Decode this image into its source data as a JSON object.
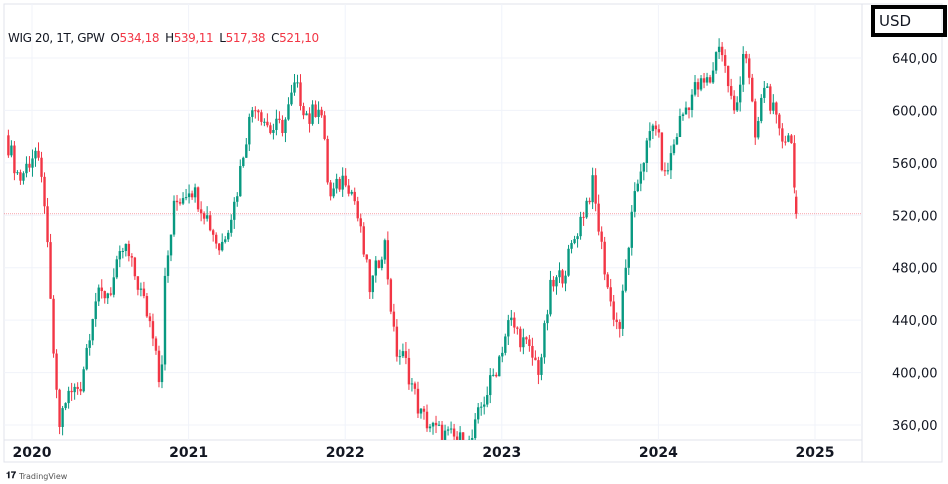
{
  "header": {
    "symbol": "WIG 20, 1T, GPW",
    "open_label": "O",
    "open": "534,18",
    "high_label": "H",
    "high": "539,11",
    "low_label": "L",
    "low": "517,38",
    "close_label": "C",
    "close": "521,10"
  },
  "currency": "USD",
  "branding": "TradingView",
  "colors": {
    "up": "#089981",
    "down": "#f23645",
    "grid": "#f0f3fa",
    "text": "#131722"
  },
  "chart_data": {
    "type": "candlestick",
    "title": "WIG 20, 1T, GPW",
    "interval": "1 week",
    "ylim": [
      340,
      665
    ],
    "y_ticks": [
      "640,00",
      "600,00",
      "560,00",
      "520,00",
      "480,00",
      "440,00",
      "400,00",
      "360,00"
    ],
    "y_tick_values": [
      640,
      600,
      560,
      520,
      480,
      440,
      400,
      360
    ],
    "x_ticks": [
      "2020",
      "2021",
      "2022",
      "2023",
      "2024",
      "2025"
    ],
    "x_tick_values": [
      2020,
      2021,
      2022,
      2023,
      2024,
      2025
    ],
    "last_price": 521.1,
    "last_candle": {
      "open": 534.18,
      "high": 539.11,
      "low": 517.38,
      "close": 521.1
    },
    "close_path": [
      [
        2019.83,
        581
      ],
      [
        2019.92,
        547
      ],
      [
        2020.02,
        570
      ],
      [
        2020.08,
        532
      ],
      [
        2020.12,
        448
      ],
      [
        2020.17,
        356
      ],
      [
        2020.21,
        379
      ],
      [
        2020.31,
        391
      ],
      [
        2020.4,
        455
      ],
      [
        2020.5,
        463
      ],
      [
        2020.59,
        497
      ],
      [
        2020.69,
        463
      ],
      [
        2020.79,
        425
      ],
      [
        2020.82,
        383
      ],
      [
        2020.85,
        471
      ],
      [
        2020.91,
        528
      ],
      [
        2021.01,
        543
      ],
      [
        2021.1,
        524
      ],
      [
        2021.2,
        494
      ],
      [
        2021.3,
        532
      ],
      [
        2021.36,
        577
      ],
      [
        2021.42,
        608
      ],
      [
        2021.52,
        585
      ],
      [
        2021.61,
        589
      ],
      [
        2021.68,
        619
      ],
      [
        2021.77,
        593
      ],
      [
        2021.84,
        608
      ],
      [
        2021.9,
        532
      ],
      [
        2022.0,
        551
      ],
      [
        2022.06,
        532
      ],
      [
        2022.16,
        463
      ],
      [
        2022.25,
        501
      ],
      [
        2022.32,
        417
      ],
      [
        2022.38,
        410
      ],
      [
        2022.48,
        368
      ],
      [
        2022.57,
        356
      ],
      [
        2022.64,
        352
      ],
      [
        2022.8,
        345
      ],
      [
        2022.86,
        371
      ],
      [
        2022.96,
        402
      ],
      [
        2023.05,
        440
      ],
      [
        2023.15,
        421
      ],
      [
        2023.24,
        402
      ],
      [
        2023.31,
        463
      ],
      [
        2023.4,
        478
      ],
      [
        2023.5,
        516
      ],
      [
        2023.58,
        543
      ],
      [
        2023.63,
        501
      ],
      [
        2023.69,
        455
      ],
      [
        2023.75,
        432
      ],
      [
        2023.82,
        509
      ],
      [
        2023.88,
        554
      ],
      [
        2023.98,
        593
      ],
      [
        2024.04,
        547
      ],
      [
        2024.14,
        593
      ],
      [
        2024.23,
        616
      ],
      [
        2024.33,
        623
      ],
      [
        2024.39,
        654
      ],
      [
        2024.49,
        593
      ],
      [
        2024.55,
        654
      ],
      [
        2024.62,
        577
      ],
      [
        2024.68,
        623
      ],
      [
        2024.78,
        577
      ],
      [
        2024.84,
        585
      ],
      [
        2024.88,
        534
      ]
    ]
  }
}
